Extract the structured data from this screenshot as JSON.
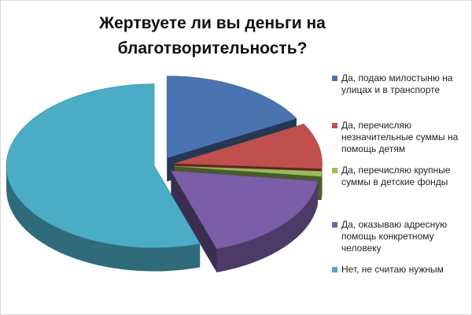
{
  "chart_data": {
    "type": "pie",
    "style": "3d-exploded",
    "title_lines": [
      "Жертвуете ли вы деньги на",
      "благотворительность?"
    ],
    "legend_position": "right",
    "slices": [
      {
        "label": "Да, подаю милостыню на улицах и в транспорте",
        "value": 17,
        "color": "#4a74b0"
      },
      {
        "label": "Да, перечисляю незначительные суммы на помощь детям",
        "value": 9,
        "color": "#c0504d"
      },
      {
        "label": "Да, перечисляю крупные суммы в детские фонды",
        "value": 1,
        "color": "#9bbb59"
      },
      {
        "label": "Да, оказываю адресную помощь конкретному человеку",
        "value": 18,
        "color": "#7b5ea7"
      },
      {
        "label": "Нет, не считаю нужным",
        "value": 55,
        "color": "#4bacc6"
      }
    ],
    "legend_lines": [
      [
        "Да, подаю милостыню на",
        "улицах и в транспорте"
      ],
      [
        "Да, перечисляю",
        "незначительные суммы на",
        "помощь детям"
      ],
      [
        "Да, перечисляю крупные",
        "суммы в детские фонды"
      ],
      [
        "Да, оказываю адресную",
        "помощь конкретному",
        "человеку"
      ],
      [
        "Нет, не считаю нужным"
      ]
    ]
  }
}
